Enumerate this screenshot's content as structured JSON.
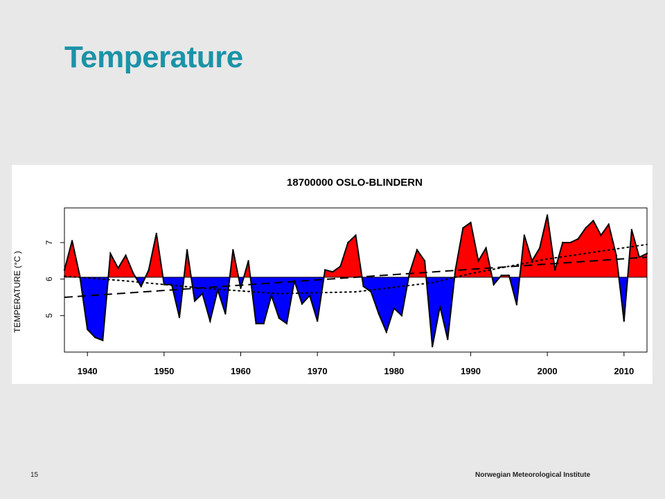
{
  "slide": {
    "title": "Temperature",
    "page_number": "15",
    "organization": "Norwegian Meteorological Institute"
  },
  "chart_data": {
    "type": "area",
    "title": "18700000 OSLO-BLINDERN",
    "ylabel": "TEMPERATURE (°C )",
    "xlabel": "",
    "xlim": [
      1937,
      2013
    ],
    "ylim": [
      4.0,
      7.95
    ],
    "baseline": 6.05,
    "x_ticks": [
      1940,
      1950,
      1960,
      1970,
      1980,
      1990,
      2000,
      2010
    ],
    "y_ticks": [
      5,
      6,
      7
    ],
    "colors": {
      "above": "#ff0000",
      "below": "#0000ff",
      "outline": "#000000"
    },
    "grid": false,
    "series": [
      {
        "x": [
          1937,
          1938,
          1939,
          1940,
          1941,
          1942,
          1943,
          1944,
          1945,
          1946,
          1947,
          1948,
          1949,
          1950,
          1951,
          1952,
          1953,
          1954,
          1955,
          1956,
          1957,
          1958,
          1959,
          1960,
          1961,
          1962,
          1963,
          1964,
          1965,
          1966,
          1967,
          1968,
          1969,
          1970,
          1971,
          1972,
          1973,
          1974,
          1975,
          1976,
          1977,
          1978,
          1979,
          1980,
          1981,
          1982,
          1983,
          1984,
          1985,
          1986,
          1987,
          1988,
          1989,
          1990,
          1991,
          1992,
          1993,
          1994,
          1995,
          1996,
          1997,
          1998,
          1999,
          2000,
          2001,
          2002,
          2003,
          2004,
          2005,
          2006,
          2007,
          2008,
          2009,
          2010,
          2011,
          2012,
          2013
        ],
        "y": [
          6.25,
          7.05,
          6.1,
          4.62,
          4.4,
          4.32,
          6.7,
          6.3,
          6.65,
          6.15,
          5.8,
          6.25,
          7.25,
          5.85,
          5.85,
          4.95,
          6.8,
          5.4,
          5.6,
          4.85,
          5.7,
          5.05,
          6.8,
          5.75,
          6.5,
          4.78,
          4.78,
          5.55,
          4.93,
          4.78,
          5.95,
          5.32,
          5.55,
          4.85,
          6.25,
          6.2,
          6.35,
          7.0,
          7.2,
          5.8,
          5.65,
          5.05,
          4.55,
          5.2,
          5.0,
          6.15,
          6.8,
          6.5,
          4.15,
          5.25,
          4.35,
          6.25,
          7.4,
          7.55,
          6.5,
          6.85,
          5.85,
          6.1,
          6.1,
          5.3,
          7.2,
          6.5,
          6.85,
          7.75,
          6.25,
          7.0,
          7.0,
          7.1,
          7.4,
          7.6,
          7.2,
          7.5,
          6.65,
          4.85,
          7.35,
          6.6,
          6.7
        ]
      },
      {
        "style": "dashed-linear-trend",
        "x": [
          1937,
          2013
        ],
        "y": [
          5.5,
          6.6
        ]
      },
      {
        "style": "dotted-smooth-trend",
        "x": [
          1937,
          1945,
          1955,
          1965,
          1975,
          1985,
          1990,
          2000,
          2013
        ],
        "y": [
          6.08,
          5.95,
          5.75,
          5.6,
          5.65,
          5.9,
          6.15,
          6.55,
          6.95
        ]
      }
    ]
  }
}
